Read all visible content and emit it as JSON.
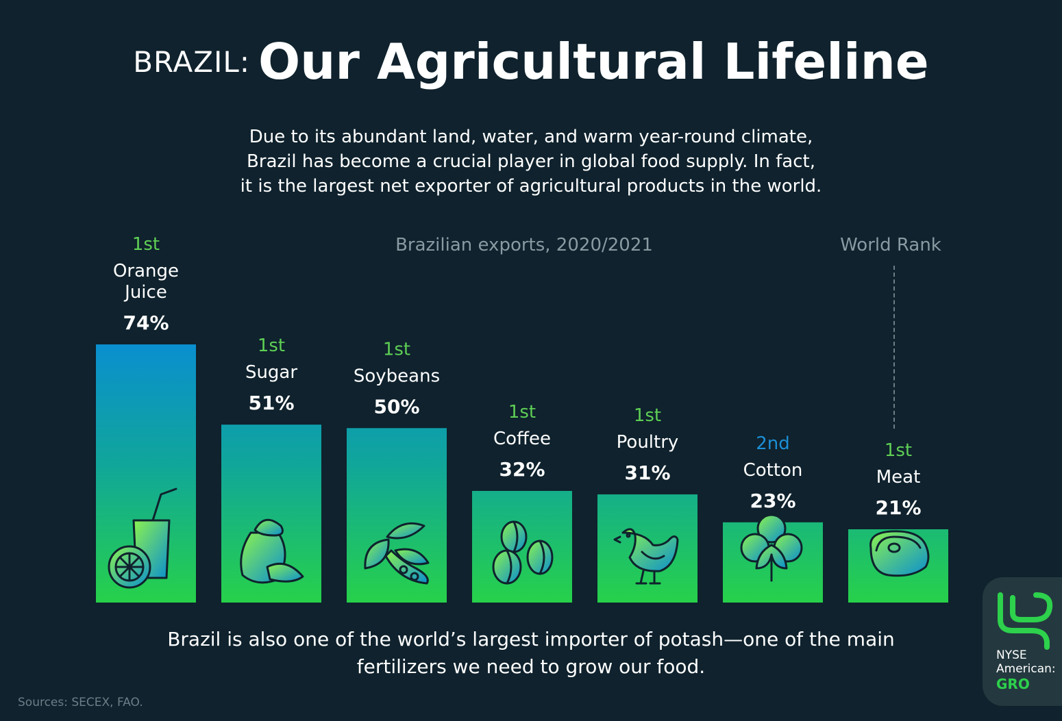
{
  "header": {
    "prefix": "BRAZIL:",
    "title": "Our Agricultural Lifeline"
  },
  "intro": {
    "lines": [
      "Due to its abundant land, water, and warm year-round climate,",
      "Brazil has become a crucial player in global food supply. In fact,",
      "it is the largest net exporter of agricultural products in the world."
    ]
  },
  "chart_data": {
    "type": "bar",
    "title": "Brazilian exports, 2020/2021",
    "rank_label": "World Rank",
    "categories": [
      "Orange Juice",
      "Sugar",
      "Soybeans",
      "Coffee",
      "Poultry",
      "Cotton",
      "Meat"
    ],
    "name_lines": [
      [
        "Orange",
        "Juice"
      ],
      [
        "Sugar"
      ],
      [
        "Soybeans"
      ],
      [
        "Coffee"
      ],
      [
        "Poultry"
      ],
      [
        "Cotton"
      ],
      [
        "Meat"
      ]
    ],
    "values": [
      74,
      51,
      50,
      32,
      31,
      23,
      21
    ],
    "value_labels": [
      "74%",
      "51%",
      "50%",
      "32%",
      "31%",
      "23%",
      "21%"
    ],
    "ranks": [
      "1st",
      "1st",
      "1st",
      "1st",
      "1st",
      "2nd",
      "1st"
    ],
    "icons": [
      "orange-juice-icon",
      "sugar-sack-icon",
      "soybean-icon",
      "coffee-bean-icon",
      "chicken-icon",
      "cotton-icon",
      "steak-icon"
    ],
    "unit": "%",
    "ylim": [
      0,
      74
    ],
    "grid": false,
    "colors": {
      "bar_top": "#0a8fcf",
      "bar_bottom": "#27d14a",
      "rank_first": "#5fcf55",
      "rank_second": "#1c8fd6"
    }
  },
  "footer": {
    "lines": [
      "Brazil is also one of the world’s largest importer of potash—one of the main",
      "fertilizers we need to grow our food."
    ]
  },
  "sources": "Sources: SECEX, FAO.",
  "logo": {
    "line1": "NYSE",
    "line2": "American:",
    "line3": "GRO"
  },
  "colors": {
    "background": "#0f222d",
    "accent_green": "#2dd14c"
  }
}
